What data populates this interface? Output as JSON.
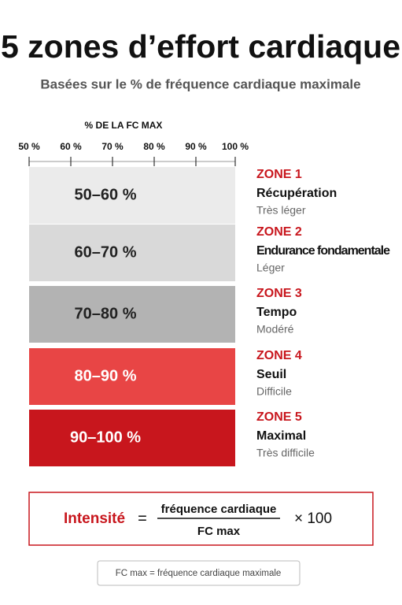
{
  "header": {
    "title": "5 zones d’effort cardiaque",
    "subtitle": "Basées sur le % de fréquence cardiaque maximale"
  },
  "scale": {
    "label": "% DE LA FC MAX",
    "ticks": [
      "50 %",
      "60 %",
      "70 %",
      "80 %",
      "90 %",
      "100 %"
    ]
  },
  "zones": [
    {
      "range": "50–60 %",
      "zone": "ZONE 1",
      "name": "Récupération",
      "intensity": "Très léger"
    },
    {
      "range": "60–70 %",
      "zone": "ZONE 2",
      "name": "Endurance fondamentale",
      "intensity": "Léger"
    },
    {
      "range": "70–80 %",
      "zone": "ZONE 3",
      "name": "Tempo",
      "intensity": "Modéré"
    },
    {
      "range": "80–90 %",
      "zone": "ZONE 4",
      "name": "Seuil",
      "intensity": "Difficile"
    },
    {
      "range": "90–100 %",
      "zone": "ZONE 5",
      "name": "Maximal",
      "intensity": "Très difficile"
    }
  ],
  "formula": {
    "left": "Intensité",
    "equals": "=",
    "numerator": "fréquence cardiaque",
    "denominator": "FC max",
    "multiplier": "× 100"
  },
  "footnote": "FC max = fréquence cardiaque maximale"
}
